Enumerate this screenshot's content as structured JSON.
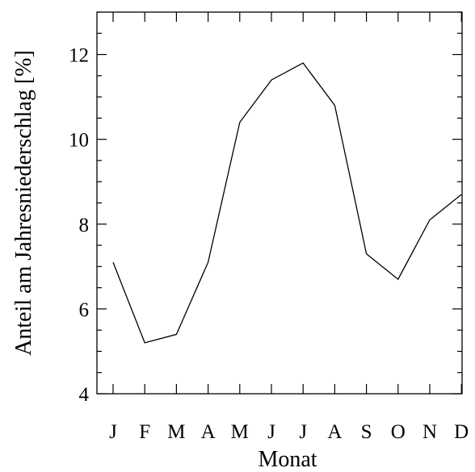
{
  "chart_data": {
    "type": "line",
    "title": "",
    "xlabel": "Monat",
    "ylabel": "Anteil am Jahresniederschlag [%]",
    "categories": [
      "J",
      "F",
      "M",
      "A",
      "M",
      "J",
      "J",
      "A",
      "S",
      "O",
      "N",
      "D"
    ],
    "series": [
      {
        "values": [
          7.1,
          5.2,
          5.4,
          7.1,
          10.4,
          11.4,
          11.8,
          10.8,
          7.3,
          6.7,
          8.1,
          8.7
        ]
      }
    ],
    "ylim": [
      4,
      13
    ],
    "y_major_ticks": [
      4,
      6,
      8,
      10,
      12
    ],
    "y_minor_step": 0.5,
    "grid": false,
    "legend": "none",
    "colors": {
      "line": "#000000",
      "axes": "#000000",
      "background": "#ffffff"
    }
  }
}
